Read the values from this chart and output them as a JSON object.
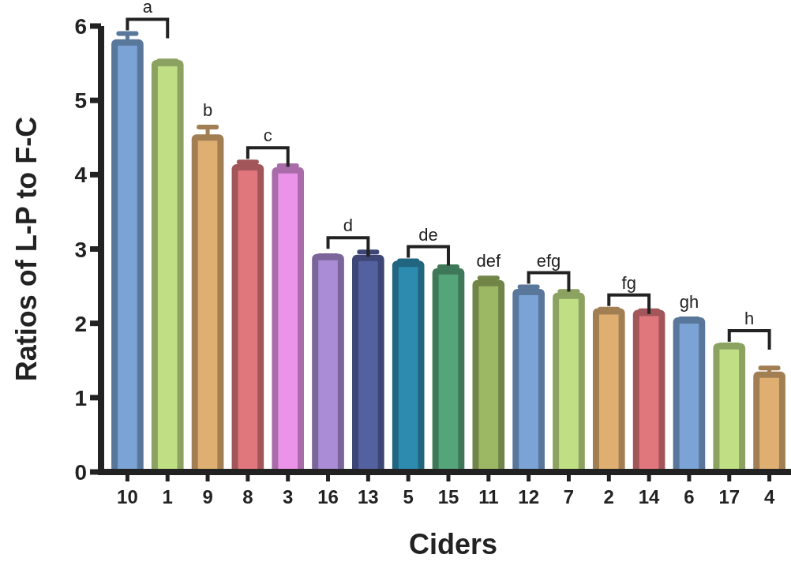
{
  "chart_data": {
    "type": "bar",
    "xlabel": "Ciders",
    "ylabel": "Ratios of L-P to F-C",
    "categories": [
      "10",
      "1",
      "9",
      "8",
      "3",
      "16",
      "13",
      "5",
      "15",
      "11",
      "12",
      "7",
      "2",
      "14",
      "6",
      "17",
      "4"
    ],
    "values": [
      5.78,
      5.5,
      4.5,
      4.1,
      4.06,
      2.89,
      2.88,
      2.8,
      2.7,
      2.54,
      2.42,
      2.37,
      2.16,
      2.14,
      2.04,
      1.69,
      1.31
    ],
    "errors": [
      0.12,
      0.03,
      0.14,
      0.07,
      0.06,
      0.02,
      0.08,
      0.04,
      0.06,
      0.07,
      0.07,
      0.06,
      0.03,
      0.03,
      0.02,
      0.02,
      0.09
    ],
    "colors": [
      "#7ba3d6",
      "#c0df85",
      "#dfaf72",
      "#e0777c",
      "#ea93e9",
      "#a98bd6",
      "#5461a0",
      "#2e8bb0",
      "#55a57b",
      "#9cb865",
      "#7ba3d6",
      "#c0df85",
      "#dfaf72",
      "#e0777c",
      "#7ba3d6",
      "#c0df85",
      "#dfaf72"
    ],
    "ylim": [
      0,
      6
    ],
    "yticks": [
      0,
      1,
      2,
      3,
      4,
      5,
      6
    ],
    "grid": false,
    "annotations": [
      {
        "text": "a",
        "x": "10",
        "y": 5.9
      },
      {
        "text": "b",
        "x": "9",
        "y": 4.64
      },
      {
        "text": "c",
        "x": "8",
        "y": 4.17
      },
      {
        "text": "d",
        "x": "16",
        "y": 2.96
      },
      {
        "text": "de",
        "x": "5",
        "y": 2.84
      },
      {
        "text": "def",
        "x": "11",
        "y": 2.61
      },
      {
        "text": "efg",
        "x": "12",
        "y": 2.49
      },
      {
        "text": "fg",
        "x": "2",
        "y": 2.19
      },
      {
        "text": "gh",
        "x": "6",
        "y": 2.06
      },
      {
        "text": "h",
        "x": "17",
        "y": 1.71
      }
    ]
  }
}
